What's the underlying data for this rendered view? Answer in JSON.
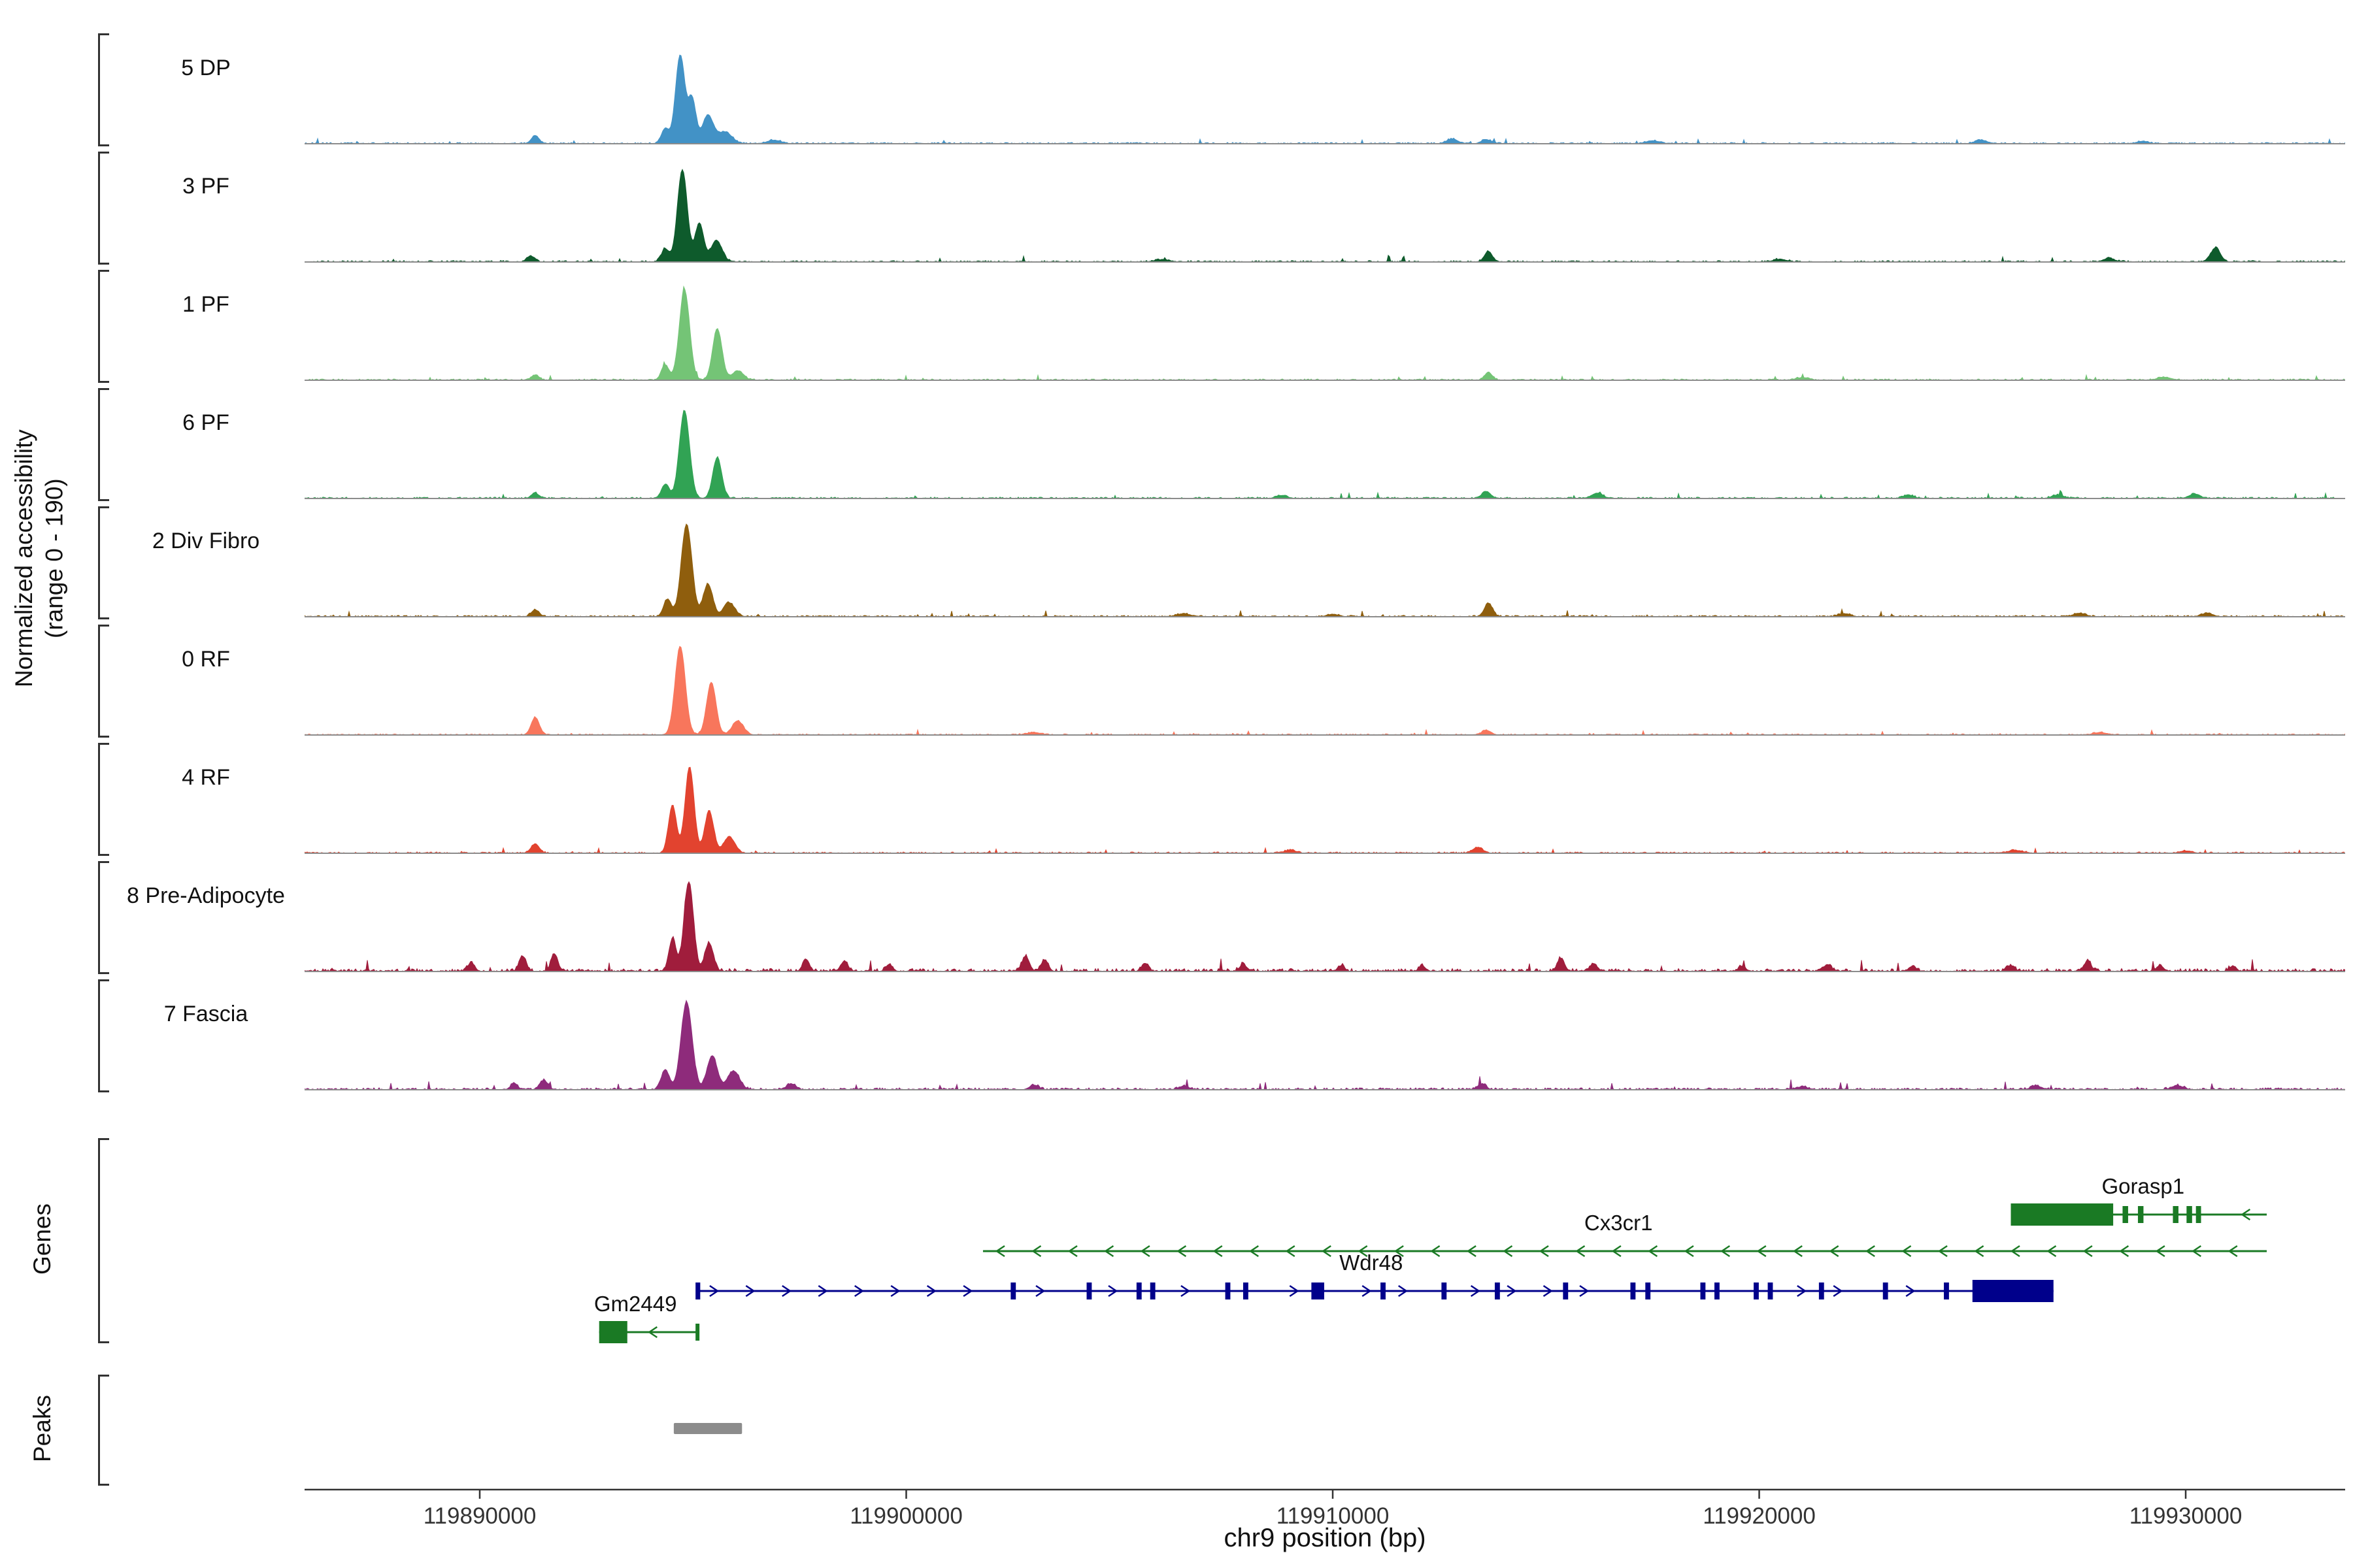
{
  "figure": {
    "background": "#ffffff",
    "y_axis_label": "Normalized accessibility\n(range 0 - 190)"
  },
  "sections": {
    "genes_label": "Genes",
    "peaks_label": "Peaks"
  },
  "axis": {
    "title": "chr9 position (bp)",
    "bp_min": 119885893,
    "bp_max": 119933739,
    "ticks": [
      119890000,
      119900000,
      119910000,
      119920000,
      119930000
    ],
    "tick_labels": [
      "119890000",
      "119900000",
      "119910000",
      "119920000",
      "119930000"
    ]
  },
  "chart_data": {
    "type": "area",
    "title": "",
    "xlabel": "chr9 position (bp)",
    "ylabel": "Normalized accessibility (range 0 - 190)",
    "x_range_bp": [
      119885893,
      119933739
    ],
    "y_range_per_track": [
      0,
      190
    ],
    "legend": "none",
    "tracks": [
      {
        "name": "5 DP",
        "color": "#4292C6",
        "noise": 1.0,
        "peaks": [
          [
            119894700,
            152,
            110
          ],
          [
            119894980,
            75,
            90
          ],
          [
            119895350,
            48,
            130
          ],
          [
            119895750,
            20,
            160
          ],
          [
            119894350,
            26,
            90
          ],
          [
            119891300,
            14,
            90
          ],
          [
            119896900,
            6,
            160
          ],
          [
            119912800,
            8,
            130
          ],
          [
            119913600,
            7,
            110
          ],
          [
            119917500,
            5,
            160
          ],
          [
            119925200,
            6,
            140
          ],
          [
            119929000,
            4,
            140
          ]
        ]
      },
      {
        "name": "3 PF",
        "color": "#0E5B2C",
        "noise": 1.1,
        "peaks": [
          [
            119894750,
            158,
            115
          ],
          [
            119895150,
            66,
            100
          ],
          [
            119895550,
            36,
            130
          ],
          [
            119894350,
            22,
            90
          ],
          [
            119891200,
            10,
            90
          ],
          [
            119913650,
            18,
            90
          ],
          [
            119930700,
            24,
            110
          ],
          [
            119928200,
            6,
            130
          ],
          [
            119906000,
            4,
            160
          ],
          [
            119920500,
            4,
            160
          ]
        ]
      },
      {
        "name": "1 PF",
        "color": "#74C476",
        "noise": 1.0,
        "peaks": [
          [
            119894800,
            155,
            120
          ],
          [
            119895570,
            88,
            110
          ],
          [
            119894350,
            26,
            90
          ],
          [
            119896050,
            16,
            130
          ],
          [
            119891300,
            9,
            90
          ],
          [
            119913650,
            13,
            90
          ],
          [
            119921000,
            4,
            160
          ],
          [
            119929500,
            5,
            160
          ]
        ]
      },
      {
        "name": "6 PF",
        "color": "#31A354",
        "noise": 1.1,
        "peaks": [
          [
            119894800,
            150,
            120
          ],
          [
            119895570,
            70,
            105
          ],
          [
            119894350,
            24,
            90
          ],
          [
            119891300,
            9,
            90
          ],
          [
            119913600,
            12,
            100
          ],
          [
            119916200,
            9,
            130
          ],
          [
            119923500,
            5,
            130
          ],
          [
            119927000,
            6,
            130
          ],
          [
            119930200,
            7,
            130
          ],
          [
            119908800,
            5,
            130
          ]
        ]
      },
      {
        "name": "2 Div Fibro",
        "color": "#8F5E0D",
        "noise": 1.1,
        "peaks": [
          [
            119894850,
            158,
            125
          ],
          [
            119895350,
            56,
            110
          ],
          [
            119895850,
            24,
            130
          ],
          [
            119894400,
            30,
            90
          ],
          [
            119891300,
            12,
            90
          ],
          [
            119913650,
            23,
            95
          ],
          [
            119906500,
            5,
            160
          ],
          [
            119910000,
            4,
            130
          ],
          [
            119922000,
            5,
            130
          ],
          [
            119927500,
            6,
            130
          ],
          [
            119930500,
            6,
            130
          ]
        ]
      },
      {
        "name": "0 RF",
        "color": "#F8765C",
        "noise": 0.9,
        "peaks": [
          [
            119891300,
            30,
            95
          ],
          [
            119894700,
            152,
            120
          ],
          [
            119895430,
            90,
            110
          ],
          [
            119896050,
            24,
            130
          ],
          [
            119913600,
            8,
            100
          ],
          [
            119903000,
            4,
            160
          ],
          [
            119928000,
            4,
            160
          ]
        ]
      },
      {
        "name": "4 RF",
        "color": "#E2432F",
        "noise": 1.0,
        "peaks": [
          [
            119894520,
            82,
            95
          ],
          [
            119894920,
            148,
            105
          ],
          [
            119895380,
            72,
            105
          ],
          [
            119895850,
            28,
            130
          ],
          [
            119891300,
            16,
            95
          ],
          [
            119913400,
            10,
            110
          ],
          [
            119909000,
            5,
            130
          ],
          [
            119926000,
            5,
            160
          ],
          [
            119930000,
            4,
            140
          ]
        ]
      },
      {
        "name": "8 Pre-Adipocyte",
        "color": "#A01D3C",
        "noise": 2.3,
        "peaks": [
          [
            119894900,
            152,
            110
          ],
          [
            119894520,
            56,
            85
          ],
          [
            119895380,
            48,
            100
          ],
          [
            119891000,
            26,
            80
          ],
          [
            119891750,
            30,
            80
          ],
          [
            119889800,
            16,
            70
          ],
          [
            119897650,
            20,
            80
          ],
          [
            119898550,
            18,
            80
          ],
          [
            119899600,
            12,
            80
          ],
          [
            119902800,
            26,
            85
          ],
          [
            119903250,
            20,
            80
          ],
          [
            119905600,
            14,
            80
          ],
          [
            119907900,
            12,
            80
          ],
          [
            119910200,
            10,
            80
          ],
          [
            119912100,
            9,
            80
          ],
          [
            119915350,
            22,
            85
          ],
          [
            119916100,
            12,
            80
          ],
          [
            119919600,
            9,
            80
          ],
          [
            119921600,
            12,
            80
          ],
          [
            119923600,
            9,
            80
          ],
          [
            119925900,
            10,
            80
          ],
          [
            119927700,
            18,
            80
          ],
          [
            119929400,
            10,
            80
          ],
          [
            119931100,
            9,
            80
          ]
        ]
      },
      {
        "name": "7 Fascia",
        "color": "#8E2B7B",
        "noise": 1.5,
        "peaks": [
          [
            119894850,
            150,
            130
          ],
          [
            119895450,
            58,
            120
          ],
          [
            119895950,
            32,
            140
          ],
          [
            119894350,
            34,
            95
          ],
          [
            119891500,
            16,
            95
          ],
          [
            119890800,
            10,
            80
          ],
          [
            119897300,
            10,
            100
          ],
          [
            119903000,
            8,
            100
          ],
          [
            119906500,
            6,
            110
          ],
          [
            119913500,
            10,
            95
          ],
          [
            119921000,
            5,
            130
          ],
          [
            119926500,
            6,
            130
          ],
          [
            119929800,
            7,
            130
          ]
        ]
      }
    ],
    "genes": [
      {
        "name": "Gorasp1",
        "color": "#1A7A24",
        "strand": "-",
        "row": 0,
        "line": [
          119925900,
          119931900
        ],
        "label_pos": 119929000,
        "arrows": "left",
        "thick": [
          [
            119925900,
            119928300
          ]
        ],
        "exons": [
          [
            119928520,
            119928650
          ],
          [
            119928880,
            119929010
          ],
          [
            119929700,
            119929830
          ],
          [
            119930020,
            119930150
          ],
          [
            119930240,
            119930360
          ]
        ]
      },
      {
        "name": "Cx3cr1",
        "color": "#1A7A24",
        "strand": "-",
        "row": 1,
        "line": [
          119901800,
          119931900
        ],
        "label_pos": 119916700,
        "arrows": "left",
        "thick": [],
        "exons": []
      },
      {
        "name": "Wdr48",
        "color": "#00008B",
        "strand": "+",
        "row": 2,
        "line": [
          119895100,
          119926900
        ],
        "label_pos": 119910900,
        "arrows": "right",
        "thick": [
          [
            119925000,
            119926900
          ]
        ],
        "exons": [
          [
            119895060,
            119895170
          ],
          [
            119902450,
            119902570
          ],
          [
            119904230,
            119904350
          ],
          [
            119905400,
            119905520
          ],
          [
            119905720,
            119905840
          ],
          [
            119907480,
            119907600
          ],
          [
            119907900,
            119908020
          ],
          [
            119909500,
            119909800
          ],
          [
            119911120,
            119911240
          ],
          [
            119912550,
            119912670
          ],
          [
            119913800,
            119913920
          ],
          [
            119915400,
            119915520
          ],
          [
            119916980,
            119917100
          ],
          [
            119917330,
            119917450
          ],
          [
            119918620,
            119918740
          ],
          [
            119918950,
            119919070
          ],
          [
            119919870,
            119919990
          ],
          [
            119920200,
            119920320
          ],
          [
            119921400,
            119921520
          ],
          [
            119922900,
            119923020
          ],
          [
            119924330,
            119924450
          ]
        ]
      },
      {
        "name": "Gm2449",
        "color": "#1A7A24",
        "strand": "-",
        "row": 3,
        "line": [
          119892800,
          119895150
        ],
        "label_pos": 119893650,
        "arrows": "left",
        "thick": [
          [
            119892800,
            119893460
          ]
        ],
        "exons": [
          [
            119895060,
            119895150
          ]
        ]
      }
    ],
    "peaks_track": {
      "color": "#8C8C8C",
      "regions": [
        [
          119894550,
          119896150
        ]
      ]
    }
  }
}
